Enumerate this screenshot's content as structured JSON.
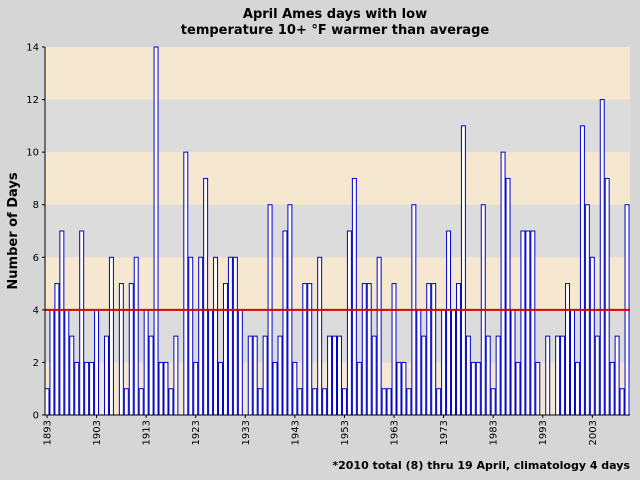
{
  "chart_data": {
    "type": "bar",
    "title": [
      "April Ames days with low",
      "temperature 10+ °F warmer than average"
    ],
    "y_label": "Number of Days",
    "footnote": "*2010 total (8) thru 19 April, climatology 4 days",
    "x": [
      1893,
      1894,
      1895,
      1896,
      1897,
      1898,
      1899,
      1900,
      1901,
      1902,
      1903,
      1904,
      1905,
      1906,
      1907,
      1908,
      1909,
      1910,
      1911,
      1912,
      1913,
      1914,
      1915,
      1916,
      1917,
      1918,
      1919,
      1920,
      1921,
      1922,
      1923,
      1924,
      1925,
      1926,
      1927,
      1928,
      1929,
      1930,
      1931,
      1932,
      1933,
      1934,
      1935,
      1936,
      1937,
      1938,
      1939,
      1940,
      1941,
      1942,
      1943,
      1944,
      1945,
      1946,
      1947,
      1948,
      1949,
      1950,
      1951,
      1952,
      1953,
      1954,
      1955,
      1956,
      1957,
      1958,
      1959,
      1960,
      1961,
      1962,
      1963,
      1964,
      1965,
      1966,
      1967,
      1968,
      1969,
      1970,
      1971,
      1972,
      1973,
      1974,
      1975,
      1976,
      1977,
      1978,
      1979,
      1980,
      1981,
      1982,
      1983,
      1984,
      1985,
      1986,
      1987,
      1988,
      1989,
      1990,
      1991,
      1992,
      1993,
      1994,
      1995,
      1996,
      1997,
      1998,
      1999,
      2000,
      2001,
      2002,
      2003,
      2004,
      2005,
      2006,
      2007,
      2008,
      2009,
      2010
    ],
    "values": [
      1,
      4,
      5,
      7,
      4,
      3,
      2,
      7,
      2,
      2,
      4,
      0,
      3,
      6,
      0,
      5,
      1,
      5,
      6,
      1,
      4,
      3,
      14,
      2,
      2,
      1,
      3,
      0,
      10,
      6,
      2,
      6,
      9,
      4,
      6,
      2,
      5,
      6,
      6,
      4,
      0,
      3,
      3,
      1,
      3,
      8,
      2,
      3,
      7,
      8,
      2,
      1,
      5,
      5,
      1,
      6,
      1,
      3,
      3,
      3,
      1,
      7,
      9,
      2,
      5,
      5,
      3,
      6,
      1,
      1,
      5,
      2,
      2,
      1,
      8,
      4,
      3,
      5,
      5,
      1,
      4,
      7,
      4,
      5,
      11,
      3,
      2,
      2,
      8,
      3,
      1,
      3,
      10,
      9,
      4,
      2,
      7,
      7,
      7,
      2,
      0,
      3,
      0,
      3,
      3,
      5,
      4,
      2,
      11,
      8,
      6,
      3,
      12,
      9,
      2,
      3,
      1,
      8
    ],
    "color": "#0000cc",
    "average": 4,
    "average_color": "#dd0000",
    "xlim": [
      1892.6,
      2010.6
    ],
    "xticks": [
      1893,
      1903,
      1913,
      1923,
      1933,
      1943,
      1953,
      1963,
      1973,
      1983,
      1993,
      2003
    ],
    "ylim": [
      0,
      14
    ],
    "yticks": [
      0,
      2,
      4,
      6,
      8,
      10,
      12,
      14
    ],
    "grid": true
  }
}
